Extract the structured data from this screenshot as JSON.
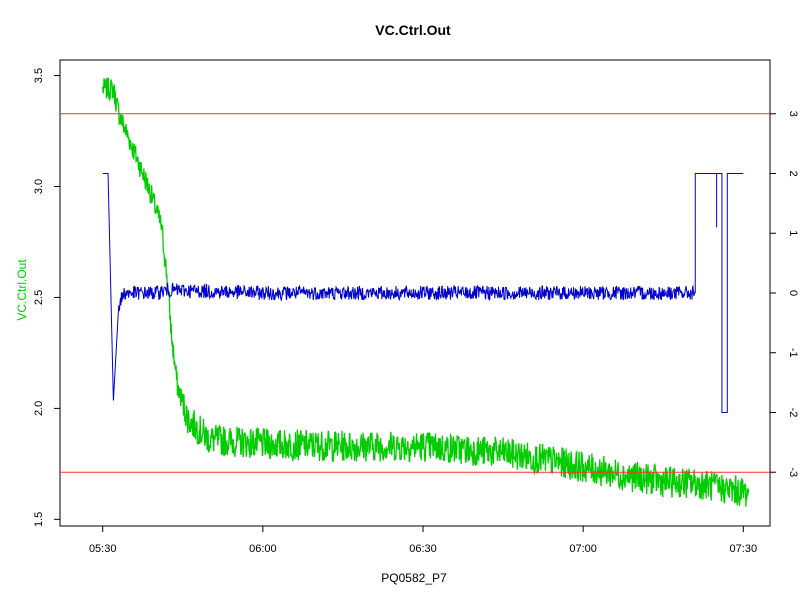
{
  "chart_data": {
    "type": "line",
    "title": "VC.Ctrl.Out",
    "xlabel": "PQ0582_P7",
    "ylabel": "VC.Ctrl.Out",
    "ylabel_color": "#00cc00",
    "x_unit": "time (hh:mm)",
    "xlim": [
      "05:22",
      "07:35"
    ],
    "x_ticks": [
      "05:30",
      "06:00",
      "06:30",
      "07:00",
      "07:30"
    ],
    "ylim": [
      1.47,
      3.57
    ],
    "y_ticks": [
      "1.5",
      "2.0",
      "2.5",
      "3.0",
      "3.5"
    ],
    "y2lim": [
      -3.9,
      3.9
    ],
    "y2_ticks": [
      "-3",
      "-2",
      "-1",
      "0",
      "1",
      "2",
      "3"
    ],
    "reference_lines": [
      {
        "axis": "y2",
        "value": 3.0,
        "color": "#ff3030"
      },
      {
        "axis": "y2",
        "value": -3.0,
        "color": "#ff3030"
      }
    ],
    "series": [
      {
        "axis": "y",
        "color": "#00cc00",
        "points": [
          [
            "05:30",
            3.44
          ],
          [
            "05:32",
            3.44
          ],
          [
            "05:33",
            3.33
          ],
          [
            "05:36",
            3.15
          ],
          [
            "05:39",
            2.97
          ],
          [
            "05:41",
            2.82
          ],
          [
            "05:42",
            2.6
          ],
          [
            "05:43",
            2.3
          ],
          [
            "05:44",
            2.1
          ],
          [
            "05:46",
            1.95
          ],
          [
            "05:50",
            1.86
          ],
          [
            "06:00",
            1.84
          ],
          [
            "06:15",
            1.83
          ],
          [
            "06:30",
            1.83
          ],
          [
            "06:45",
            1.8
          ],
          [
            "06:55",
            1.76
          ],
          [
            "07:05",
            1.71
          ],
          [
            "07:15",
            1.67
          ],
          [
            "07:22",
            1.66
          ],
          [
            "07:26",
            1.64
          ],
          [
            "07:31",
            1.62
          ]
        ],
        "noise": 0.05
      },
      {
        "axis": "y2",
        "color": "#0000cc",
        "points": [
          [
            "05:30",
            2.0
          ],
          [
            "05:31",
            2.0
          ],
          [
            "05:31",
            2.0
          ],
          [
            "05:32",
            -1.8
          ],
          [
            "05:33",
            -0.2
          ],
          [
            "05:34",
            0.0
          ],
          [
            "05:40",
            0.0
          ],
          [
            "05:42",
            0.05
          ],
          [
            "06:00",
            0.0
          ],
          [
            "06:30",
            0.0
          ],
          [
            "07:00",
            0.0
          ],
          [
            "07:21",
            0.0
          ],
          [
            "07:21",
            2.0
          ],
          [
            "07:25",
            2.0
          ],
          [
            "07:25",
            1.1
          ],
          [
            "07:25",
            2.0
          ],
          [
            "07:26",
            2.0
          ],
          [
            "07:26",
            -2.0
          ],
          [
            "07:27",
            -2.0
          ],
          [
            "07:27",
            2.0
          ],
          [
            "07:30",
            2.0
          ]
        ],
        "noise": 0.12
      }
    ]
  }
}
